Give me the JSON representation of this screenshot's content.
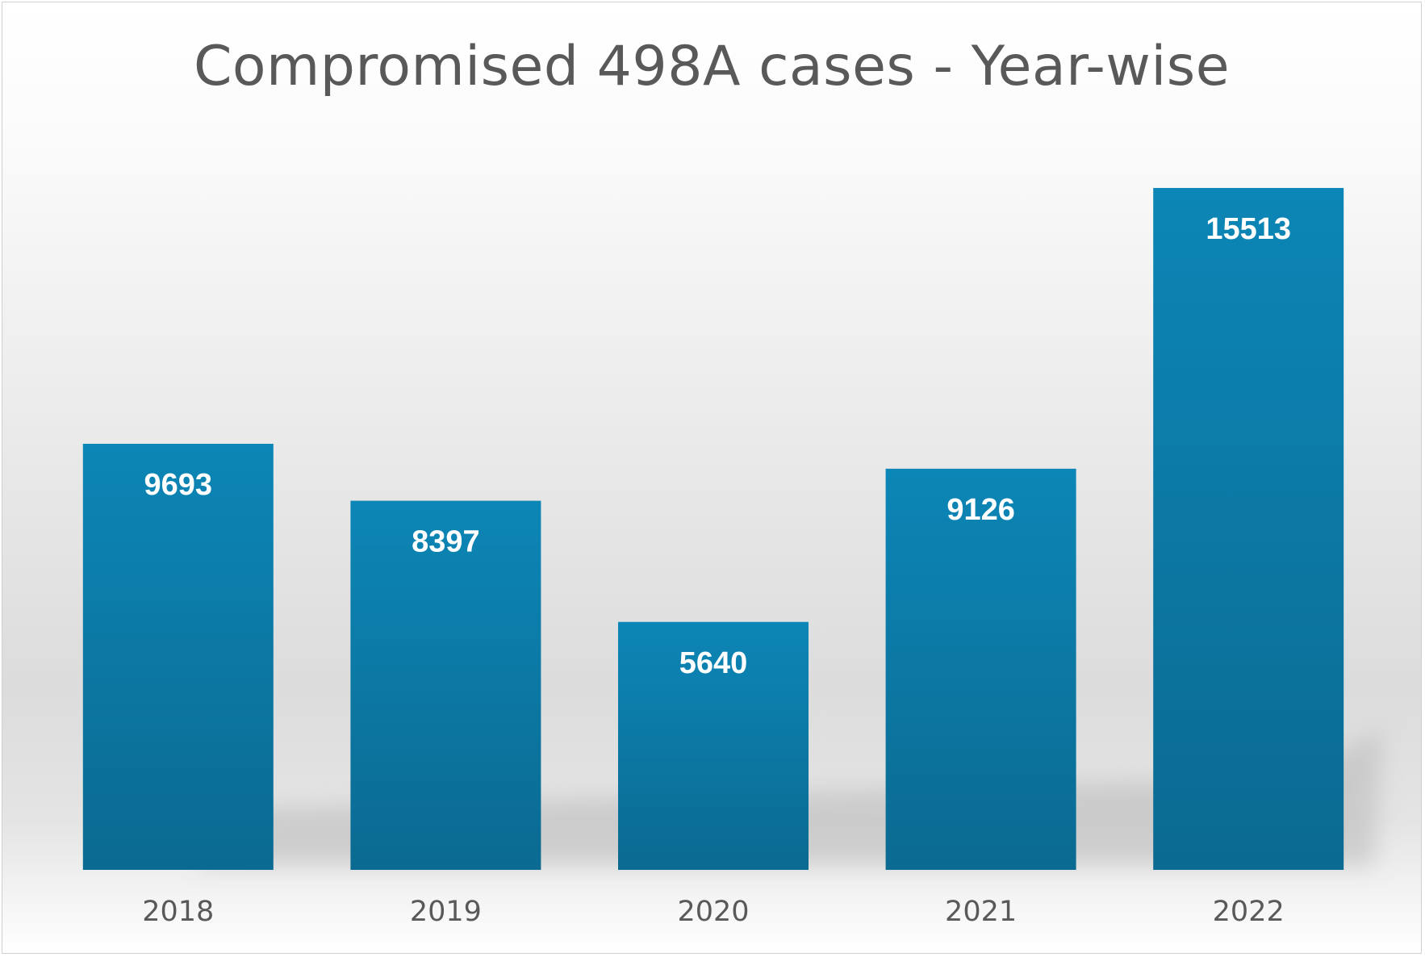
{
  "chart_data": {
    "type": "bar",
    "title": "Compromised 498A cases - Year-wise",
    "xlabel": "",
    "ylabel": "",
    "categories": [
      "2018",
      "2019",
      "2020",
      "2021",
      "2022"
    ],
    "values": [
      9693,
      8397,
      5640,
      9126,
      15513
    ],
    "data_labels": [
      "9693",
      "8397",
      "5640",
      "9126",
      "15513"
    ],
    "ylim": [
      0,
      19000
    ],
    "grid": false,
    "legend": "none",
    "bar_color_top": "#0c86b6",
    "bar_color_bottom": "#0b6a91",
    "data_label_color": "#ffffff",
    "tick_label_color": "#595959"
  }
}
